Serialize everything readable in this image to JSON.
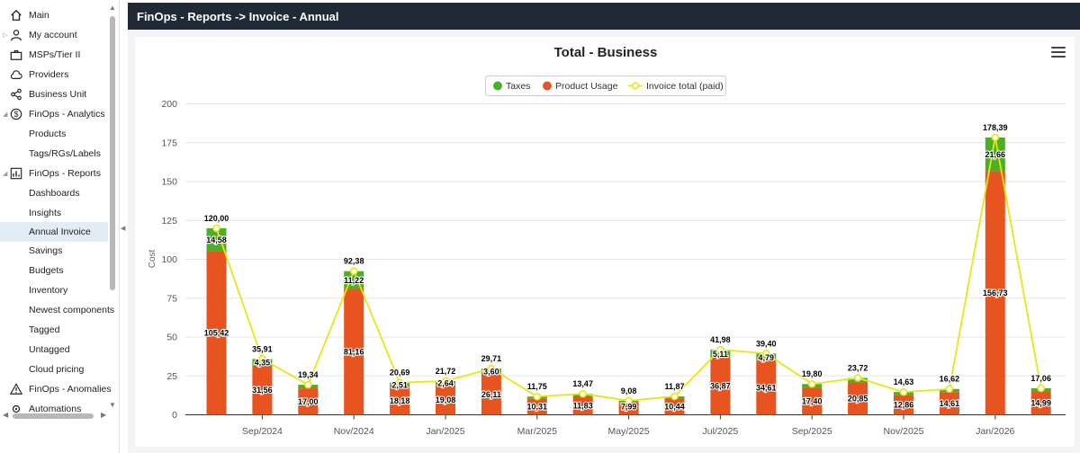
{
  "sidebar": {
    "items": [
      {
        "label": "Main",
        "icon": "home-icon",
        "level": "top"
      },
      {
        "label": "My account",
        "icon": "user-icon",
        "level": "top"
      },
      {
        "label": "MSPs/Tier II",
        "icon": "briefcase-icon",
        "level": "top"
      },
      {
        "label": "Providers",
        "icon": "cloud-icon",
        "level": "top"
      },
      {
        "label": "Business Unit",
        "icon": "share-nodes-icon",
        "level": "top"
      },
      {
        "label": "FinOps - Analytics",
        "icon": "dollar-circle-icon",
        "level": "top"
      },
      {
        "label": "Products",
        "level": "sub"
      },
      {
        "label": "Tags/RGs/Labels",
        "level": "sub"
      },
      {
        "label": "FinOps - Reports",
        "icon": "report-chart-icon",
        "level": "top"
      },
      {
        "label": "Dashboards",
        "level": "sub"
      },
      {
        "label": "Insights",
        "level": "sub"
      },
      {
        "label": "Annual Invoice",
        "level": "sub",
        "active": true
      },
      {
        "label": "Savings",
        "level": "sub"
      },
      {
        "label": "Budgets",
        "level": "sub"
      },
      {
        "label": "Inventory",
        "level": "sub"
      },
      {
        "label": "Newest components",
        "level": "sub"
      },
      {
        "label": "Tagged",
        "level": "sub"
      },
      {
        "label": "Untagged",
        "level": "sub"
      },
      {
        "label": "Cloud pricing",
        "level": "sub"
      },
      {
        "label": "FinOps - Anomalies",
        "icon": "warning-icon",
        "level": "top"
      },
      {
        "label": "Automations",
        "icon": "automation-icon",
        "level": "top"
      }
    ]
  },
  "header": {
    "title": "FinOps - Reports -> Invoice - Annual"
  },
  "colors": {
    "taxes": "#4caf26",
    "product_usage": "#e8541f",
    "invoice_total": "#e6e619",
    "header_bg": "#1f2a36",
    "active_item": "#e2ecf5"
  },
  "chart_data": {
    "type": "bar",
    "title": "Total - Business",
    "ylabel": "Cost",
    "ylim": [
      0,
      200
    ],
    "yticks": [
      0,
      25,
      50,
      75,
      100,
      125,
      150,
      175,
      200
    ],
    "xtick_labels": [
      "Sep/2024",
      "Nov/2024",
      "Jan/2025",
      "Mar/2025",
      "May/2025",
      "Jul/2025",
      "Sep/2025",
      "Nov/2025",
      "Jan/2026"
    ],
    "legend": [
      "Taxes",
      "Product Usage",
      "Invoice total (paid)"
    ],
    "legend_position": "top-center",
    "stacked": true,
    "series": [
      {
        "name": "Product Usage",
        "type": "bar",
        "values": [
          105.42,
          31.56,
          17.0,
          81.16,
          18.18,
          19.08,
          26.11,
          10.31,
          11.83,
          7.99,
          10.44,
          36.87,
          34.61,
          17.4,
          20.85,
          12.86,
          14.61,
          156.73,
          14.99
        ],
        "labels": [
          "105,42",
          "31,56",
          "17,00",
          "81,16",
          "18,18",
          "19,08",
          "26,11",
          "10,31",
          "11,83",
          "7,99",
          "10,44",
          "36,87",
          "34,61",
          "17,40",
          "20,85",
          "12,86",
          "14,61",
          "156,73",
          "14,99"
        ]
      },
      {
        "name": "Taxes",
        "type": "bar",
        "values": [
          14.58,
          4.35,
          2.34,
          11.22,
          2.51,
          2.64,
          3.6,
          1.44,
          1.64,
          1.09,
          1.43,
          5.11,
          4.79,
          2.4,
          2.87,
          1.77,
          2.01,
          21.66,
          2.07
        ],
        "labels": [
          "14,58",
          "4,35",
          "",
          "11,22",
          "2,51",
          "2,64",
          "3,60",
          "",
          "",
          "",
          "",
          "5,11",
          "4,79",
          "",
          "",
          "",
          "",
          "21,66",
          ""
        ]
      },
      {
        "name": "Invoice total (paid)",
        "type": "line",
        "values": [
          120.0,
          35.91,
          19.34,
          92.38,
          20.69,
          21.72,
          29.71,
          11.75,
          13.47,
          9.08,
          11.87,
          41.98,
          39.4,
          19.8,
          23.72,
          14.63,
          16.62,
          178.39,
          17.06
        ],
        "labels": [
          "120,00",
          "35,91",
          "19,34",
          "92,38",
          "20,69",
          "21,72",
          "29,71",
          "11,75",
          "13,47",
          "9,08",
          "11,87",
          "41,98",
          "39,40",
          "19,80",
          "23,72",
          "14,63",
          "16,62",
          "178,39",
          "17,06"
        ]
      }
    ]
  }
}
